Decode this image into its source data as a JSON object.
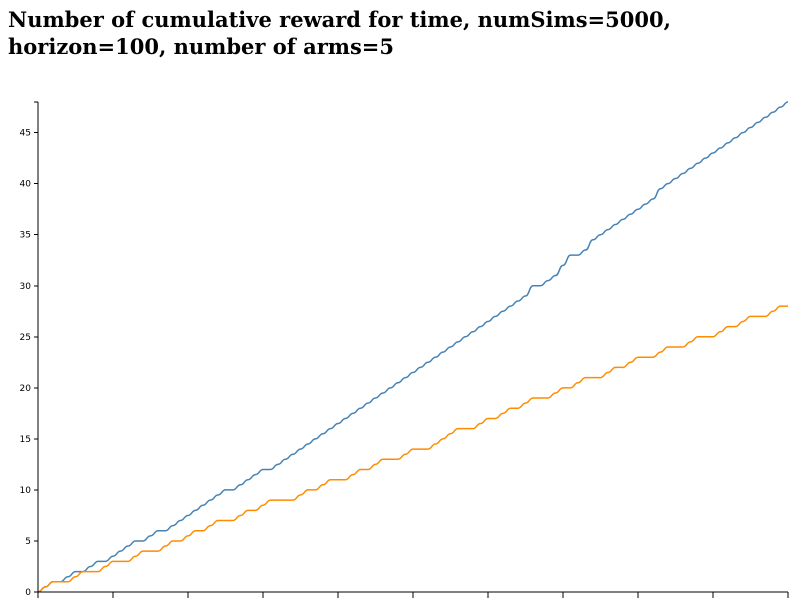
{
  "chart_data": {
    "type": "line",
    "title": "Number of cumulative reward for time, numSims=5000, horizon=100, number of arms=5",
    "xlabel": "",
    "ylabel": "",
    "xlim": [
      0,
      100
    ],
    "ylim": [
      0,
      48
    ],
    "y_ticks": [
      "0",
      "5",
      "10",
      "15",
      "20",
      "25",
      "30",
      "35",
      "40",
      "45"
    ],
    "x_tick_count": 10,
    "x_tick_labels_visible": false,
    "grid": false,
    "legend": "none",
    "x": [
      0,
      1,
      2,
      3,
      4,
      5,
      6,
      7,
      8,
      9,
      10,
      11,
      12,
      13,
      14,
      15,
      16,
      17,
      18,
      19,
      20,
      21,
      22,
      23,
      24,
      25,
      26,
      27,
      28,
      29,
      30,
      31,
      32,
      33,
      34,
      35,
      36,
      37,
      38,
      39,
      40,
      41,
      42,
      43,
      44,
      45,
      46,
      47,
      48,
      49,
      50,
      51,
      52,
      53,
      54,
      55,
      56,
      57,
      58,
      59,
      60,
      61,
      62,
      63,
      64,
      65,
      66,
      67,
      68,
      69,
      70,
      71,
      72,
      73,
      74,
      75,
      76,
      77,
      78,
      79,
      80,
      81,
      82,
      83,
      84,
      85,
      86,
      87,
      88,
      89,
      90,
      91,
      92,
      93,
      94,
      95,
      96,
      97,
      98,
      99,
      100
    ],
    "series": [
      {
        "color": "#4682b4",
        "values": [
          0,
          0.5,
          1,
          1,
          1.5,
          2,
          2,
          2.5,
          3,
          3,
          3.5,
          4,
          4.5,
          5,
          5,
          5.5,
          6,
          6,
          6.5,
          7,
          7.5,
          8,
          8.5,
          9,
          9.5,
          10,
          10,
          10.5,
          11,
          11.5,
          12,
          12,
          12.5,
          13,
          13.5,
          14,
          14.5,
          15,
          15.5,
          16,
          16.5,
          17,
          17.5,
          18,
          18.5,
          19,
          19.5,
          20,
          20.5,
          21,
          21.5,
          22,
          22.5,
          23,
          23.5,
          24,
          24.5,
          25,
          25.5,
          26,
          26.5,
          27,
          27.5,
          28,
          28.5,
          29,
          30,
          30,
          30.5,
          31,
          32,
          33,
          33,
          33.5,
          34.5,
          35,
          35.5,
          36,
          36.5,
          37,
          37.5,
          38,
          38.5,
          39.5,
          40,
          40.5,
          41,
          41.5,
          42,
          42.5,
          43,
          43.5,
          44,
          44.5,
          45,
          45.5,
          46,
          46.5,
          47,
          47.5,
          48
        ]
      },
      {
        "color": "#ff8c00",
        "values": [
          0,
          0.5,
          1,
          1,
          1,
          1.5,
          2,
          2,
          2,
          2.5,
          3,
          3,
          3,
          3.5,
          4,
          4,
          4,
          4.5,
          5,
          5,
          5.5,
          6,
          6,
          6.5,
          7,
          7,
          7,
          7.5,
          8,
          8,
          8.5,
          9,
          9,
          9,
          9,
          9.5,
          10,
          10,
          10.5,
          11,
          11,
          11,
          11.5,
          12,
          12,
          12.5,
          13,
          13,
          13,
          13.5,
          14,
          14,
          14,
          14.5,
          15,
          15.5,
          16,
          16,
          16,
          16.5,
          17,
          17,
          17.5,
          18,
          18,
          18.5,
          19,
          19,
          19,
          19.5,
          20,
          20,
          20.5,
          21,
          21,
          21,
          21.5,
          22,
          22,
          22.5,
          23,
          23,
          23,
          23.5,
          24,
          24,
          24,
          24.5,
          25,
          25,
          25,
          25.5,
          26,
          26,
          26.5,
          27,
          27,
          27,
          27.5,
          28,
          28
        ]
      }
    ]
  }
}
